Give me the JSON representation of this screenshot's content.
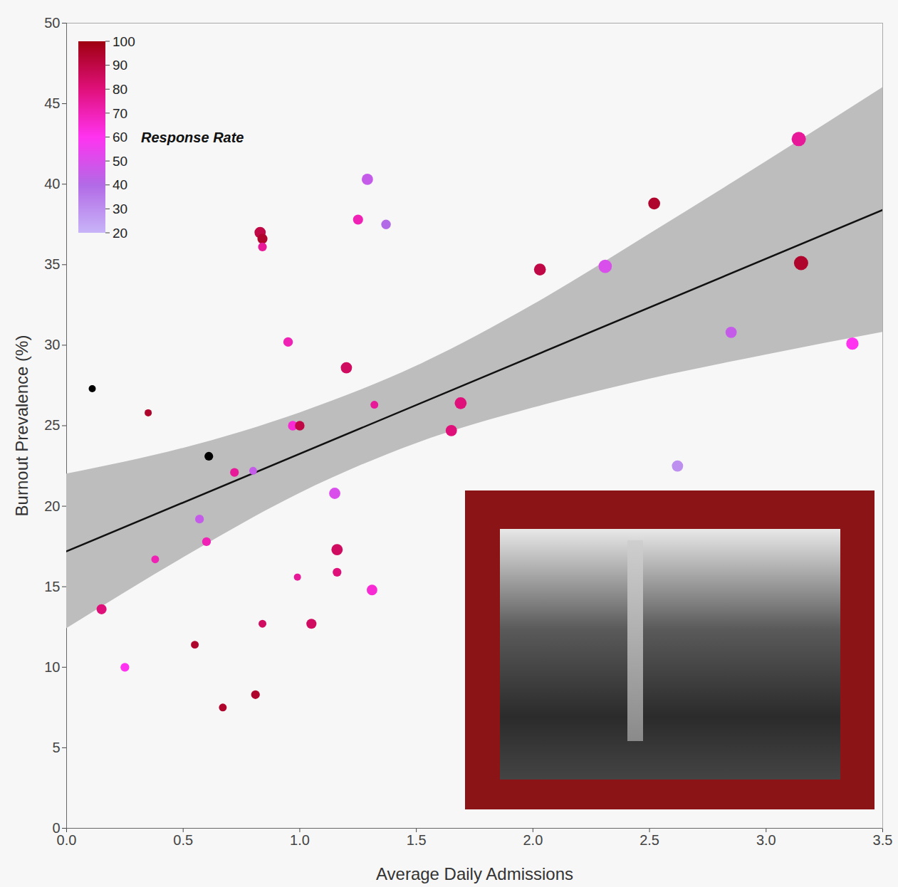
{
  "chart_data": {
    "type": "scatter",
    "x_label": "Average Daily Admissions",
    "y_label": "Burnout Prevalence (%)",
    "xlim": [
      0,
      3.5
    ],
    "ylim": [
      0,
      50
    ],
    "xticks": [
      {
        "value": 0,
        "label": "0.0"
      },
      {
        "value": 0.5,
        "label": "0.5"
      },
      {
        "value": 1,
        "label": "1.0"
      },
      {
        "value": 1.5,
        "label": "1.5"
      },
      {
        "value": 2,
        "label": "2.0"
      },
      {
        "value": 2.5,
        "label": "2.5"
      },
      {
        "value": 3,
        "label": "3.0"
      },
      {
        "value": 3.5,
        "label": "3.5"
      }
    ],
    "yticks": [
      0,
      5,
      10,
      15,
      20,
      25,
      30,
      35,
      40,
      45,
      50
    ],
    "points": {
      "x": [
        0.11,
        0.15,
        0.25,
        0.35,
        0.38,
        0.55,
        0.57,
        0.6,
        0.61,
        0.67,
        0.72,
        0.8,
        0.81,
        0.83,
        0.84,
        0.84,
        0.84,
        0.95,
        0.97,
        0.99,
        1.0,
        1.05,
        1.15,
        1.16,
        1.16,
        1.2,
        1.25,
        1.29,
        1.31,
        1.32,
        1.37,
        1.65,
        1.69,
        2.03,
        2.31,
        2.52,
        2.62,
        2.85,
        3.14,
        3.15,
        3.37
      ],
      "y": [
        27.3,
        13.6,
        10.0,
        25.8,
        16.7,
        11.4,
        19.2,
        17.8,
        23.1,
        7.5,
        22.1,
        22.2,
        8.3,
        37.0,
        36.6,
        36.1,
        12.7,
        30.2,
        25.0,
        15.6,
        25.0,
        12.7,
        20.8,
        15.9,
        17.3,
        28.6,
        37.8,
        40.3,
        14.8,
        26.3,
        37.5,
        24.7,
        26.4,
        34.7,
        34.9,
        38.8,
        22.5,
        30.8,
        42.8,
        35.1,
        30.1
      ],
      "response_rate": [
        null,
        80,
        60,
        95,
        70,
        95,
        45,
        70,
        null,
        95,
        75,
        45,
        95,
        90,
        95,
        75,
        85,
        70,
        65,
        75,
        90,
        85,
        50,
        80,
        85,
        85,
        70,
        45,
        65,
        75,
        40,
        80,
        80,
        90,
        50,
        95,
        30,
        45,
        75,
        95,
        60
      ],
      "sizes": [
        1,
        2,
        1.5,
        1,
        1.2,
        1.2,
        1.5,
        1.5,
        1.5,
        1.2,
        1.5,
        1.2,
        1.5,
        2.5,
        2,
        1.5,
        1.2,
        1.8,
        1.8,
        1,
        1.8,
        2,
        2.5,
        1.5,
        2.5,
        2.5,
        2,
        2.5,
        2.2,
        1.2,
        1.8,
        2.5,
        2.8,
        2.8,
        3.5,
        2.8,
        2.5,
        2.5,
        4,
        4,
        3
      ]
    },
    "fit": {
      "x": [
        0,
        3.5
      ],
      "y": [
        17.2,
        38.4
      ]
    },
    "band": {
      "x": [
        0,
        0.5,
        1.0,
        1.5,
        2.0,
        2.5,
        3.0,
        3.5
      ],
      "lower": [
        12.4,
        16.8,
        20.8,
        23.9,
        26.1,
        27.9,
        29.4,
        30.8
      ],
      "upper": [
        22.0,
        23.6,
        25.8,
        28.7,
        32.5,
        36.9,
        41.4,
        46.0
      ]
    },
    "colorbar": {
      "label": "Response Rate",
      "range": [
        20,
        100
      ],
      "ticks": [
        20,
        30,
        40,
        50,
        60,
        70,
        80,
        90,
        100
      ],
      "colors": [
        "#c8b4f8",
        "#b26ae6",
        "#ff33f0",
        "#e0107a",
        "#9e0010"
      ]
    },
    "legend": "top-left"
  }
}
